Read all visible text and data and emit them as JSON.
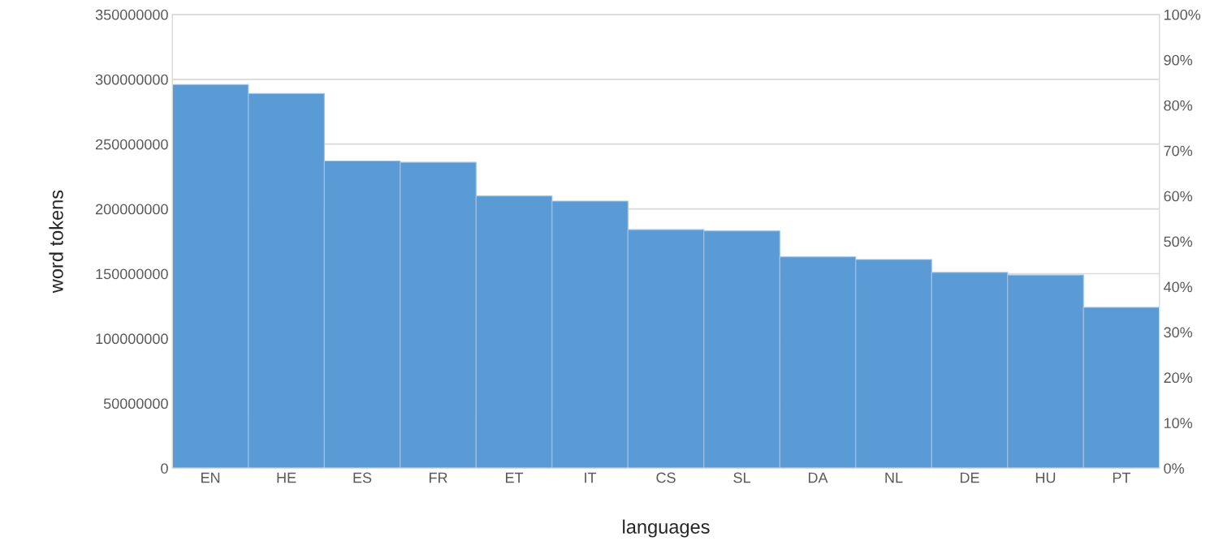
{
  "chart_data": {
    "type": "bar",
    "xlabel": "languages",
    "ylabel": "word tokens",
    "categories": [
      "EN",
      "HE",
      "ES",
      "FR",
      "ET",
      "IT",
      "CS",
      "SL",
      "DA",
      "NL",
      "DE",
      "HU",
      "PT"
    ],
    "series": [
      {
        "color": "#5b9bd5",
        "values": [
          296000000,
          289000000,
          237000000,
          236000000,
          210000000,
          206000000,
          184000000,
          183000000,
          163000000,
          161000000,
          151000000,
          149000000,
          124000000
        ]
      }
    ],
    "ylim": [
      0,
      350000000
    ],
    "yticks": [
      0,
      50000000,
      100000000,
      150000000,
      200000000,
      250000000,
      300000000,
      350000000
    ],
    "y2lim": [
      0,
      100
    ],
    "y2ticks": [
      {
        "value": 0,
        "label": "0%"
      },
      {
        "value": 10,
        "label": "10%"
      },
      {
        "value": 20,
        "label": "20%"
      },
      {
        "value": 30,
        "label": "30%"
      },
      {
        "value": 40,
        "label": "40%"
      },
      {
        "value": 50,
        "label": "50%"
      },
      {
        "value": 60,
        "label": "60%"
      },
      {
        "value": 70,
        "label": "70%"
      },
      {
        "value": 80,
        "label": "80%"
      },
      {
        "value": 90,
        "label": "90%"
      },
      {
        "value": 100,
        "label": "100%"
      }
    ],
    "grid": "y",
    "legend": false
  }
}
